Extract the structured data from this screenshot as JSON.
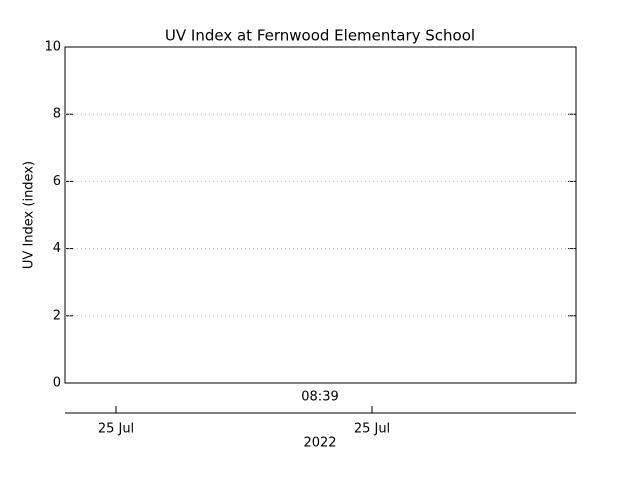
{
  "chart_data": {
    "type": "line",
    "title": "UV Index at Fernwood Elementary School",
    "ylabel": "UV Index (index)",
    "ylim": [
      0,
      10
    ],
    "yticks": [
      0,
      2,
      4,
      6,
      8,
      10
    ],
    "grid": true,
    "time_label": "08:39",
    "date_labels": [
      "25 Jul",
      "25 Jul"
    ],
    "year_label": "2022"
  }
}
